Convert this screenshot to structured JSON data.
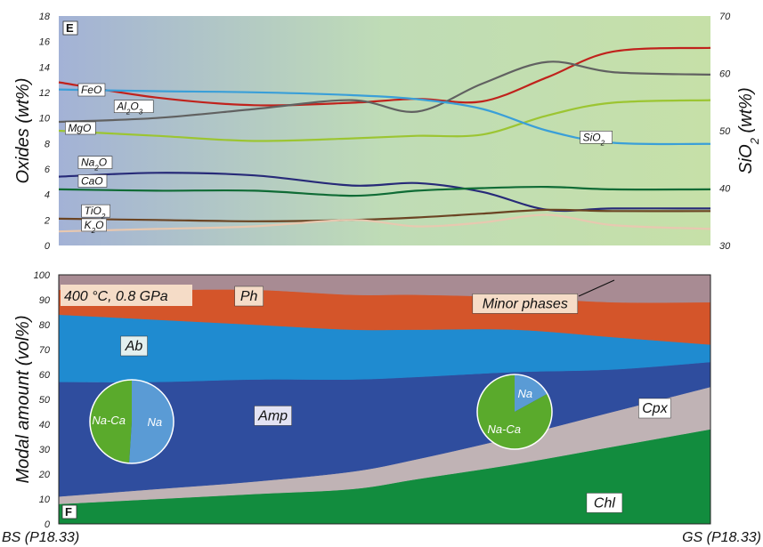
{
  "samples": {
    "left": "BS (P18.33)",
    "right": "GS (P18.33)"
  },
  "chart_data": [
    {
      "panel": "E",
      "type": "line",
      "ylabel": "Oxides (wt%)",
      "ylim": [
        0,
        18
      ],
      "yticks": [
        0,
        2,
        4,
        6,
        8,
        10,
        12,
        14,
        16,
        18
      ],
      "y2label": "SiO2 (wt%)",
      "y2lim": [
        30,
        70
      ],
      "y2ticks": [
        30,
        40,
        50,
        60,
        70
      ],
      "x": [
        0,
        0.15,
        0.3,
        0.45,
        0.55,
        0.65,
        0.75,
        0.85,
        1
      ],
      "series": [
        {
          "name": "FeO",
          "name_html": "FeO",
          "color": "#c0221c",
          "axis": "left",
          "values": [
            12.8,
            11.6,
            11.0,
            11.2,
            11.5,
            11.3,
            13.2,
            15.2,
            15.5
          ]
        },
        {
          "name": "Al2O3",
          "name_html": "Al<tspan baseline-shift='sub' font-size='8'>2</tspan>O<tspan baseline-shift='sub' font-size='8'>3</tspan>",
          "color": "#616161",
          "axis": "left",
          "values": [
            9.7,
            10.0,
            10.7,
            11.4,
            10.5,
            12.7,
            14.4,
            13.6,
            13.4
          ]
        },
        {
          "name": "MgO",
          "name_html": "MgO",
          "color": "#9cc532",
          "axis": "left",
          "values": [
            9.0,
            8.6,
            8.2,
            8.4,
            8.6,
            8.7,
            10.2,
            11.2,
            11.4
          ]
        },
        {
          "name": "Na2O",
          "name_html": "Na<tspan baseline-shift='sub' font-size='8'>2</tspan>O",
          "color": "#272a78",
          "axis": "left",
          "values": [
            5.4,
            5.7,
            5.5,
            4.7,
            4.9,
            4.2,
            2.8,
            2.9,
            2.9
          ]
        },
        {
          "name": "CaO",
          "name_html": "CaO",
          "color": "#0f6b35",
          "axis": "left",
          "values": [
            4.4,
            4.3,
            4.3,
            3.9,
            4.3,
            4.5,
            4.6,
            4.4,
            4.4
          ]
        },
        {
          "name": "TiO2",
          "name_html": "TiO<tspan baseline-shift='sub' font-size='8'>2</tspan>",
          "color": "#6b4423",
          "axis": "left",
          "values": [
            2.1,
            2.0,
            1.9,
            2.0,
            2.2,
            2.5,
            2.8,
            2.7,
            2.7
          ]
        },
        {
          "name": "K2O",
          "name_html": "K<tspan baseline-shift='sub' font-size='8'>2</tspan>O",
          "color": "#e8c8b0",
          "axis": "left",
          "values": [
            1.1,
            1.3,
            1.5,
            2.0,
            1.5,
            1.8,
            2.4,
            1.6,
            1.3
          ]
        },
        {
          "name": "SiO2",
          "name_html": "SiO<tspan baseline-shift='sub' font-size='8'>2</tspan>",
          "color": "#3a9fd8",
          "axis": "right",
          "values": [
            57.2,
            56.9,
            56.7,
            56.2,
            55.5,
            53.8,
            50.0,
            47.9,
            47.7
          ]
        }
      ]
    },
    {
      "panel": "F",
      "type": "area",
      "annotation": "400 °C, 0.8 GPa",
      "ylabel": "Modal amount (vol%)",
      "ylim": [
        0,
        100
      ],
      "yticks": [
        0,
        10,
        20,
        30,
        40,
        50,
        60,
        70,
        80,
        90,
        100
      ],
      "x": [
        0,
        0.15,
        0.3,
        0.45,
        0.55,
        0.7,
        0.85,
        1
      ],
      "series": [
        {
          "name": "Chl",
          "color": "#128c3e",
          "labelcolor": "#ffffff",
          "values": [
            8,
            10,
            12,
            14,
            18,
            24,
            31,
            38
          ]
        },
        {
          "name": "Cpx",
          "color": "#c0b3b5",
          "labelcolor": "#ffffff",
          "values": [
            3,
            4,
            5,
            7,
            8,
            11,
            14,
            17
          ]
        },
        {
          "name": "Amp",
          "color": "#2f4d9e",
          "labelcolor": "#e3e3f3",
          "values": [
            46,
            43,
            41,
            37,
            33,
            26,
            17,
            10
          ]
        },
        {
          "name": "Ab",
          "color": "#1f8bd0",
          "labelcolor": "#e3f0ef",
          "values": [
            27,
            25,
            22,
            20,
            19,
            17,
            13,
            7
          ]
        },
        {
          "name": "Ph",
          "color": "#d4552a",
          "labelcolor": "#f5dcc7",
          "values": [
            10,
            12,
            14,
            14,
            14,
            13,
            14,
            17
          ]
        },
        {
          "name": "Minor phases",
          "color": "#a88b93",
          "labelcolor": "#f5dcc7",
          "values": [
            6,
            6,
            6,
            8,
            8,
            9,
            11,
            11
          ]
        }
      ],
      "pies": [
        {
          "position": "left",
          "slices": [
            {
              "label": "Na",
              "value": 51,
              "color": "#5a9bd5"
            },
            {
              "label": "Na-Ca",
              "value": 49,
              "color": "#5aaa2c"
            }
          ]
        },
        {
          "position": "right",
          "slices": [
            {
              "label": "Na",
              "value": 17,
              "color": "#5a9bd5"
            },
            {
              "label": "Na-Ca",
              "value": 83,
              "color": "#5aaa2c"
            }
          ]
        }
      ]
    }
  ]
}
